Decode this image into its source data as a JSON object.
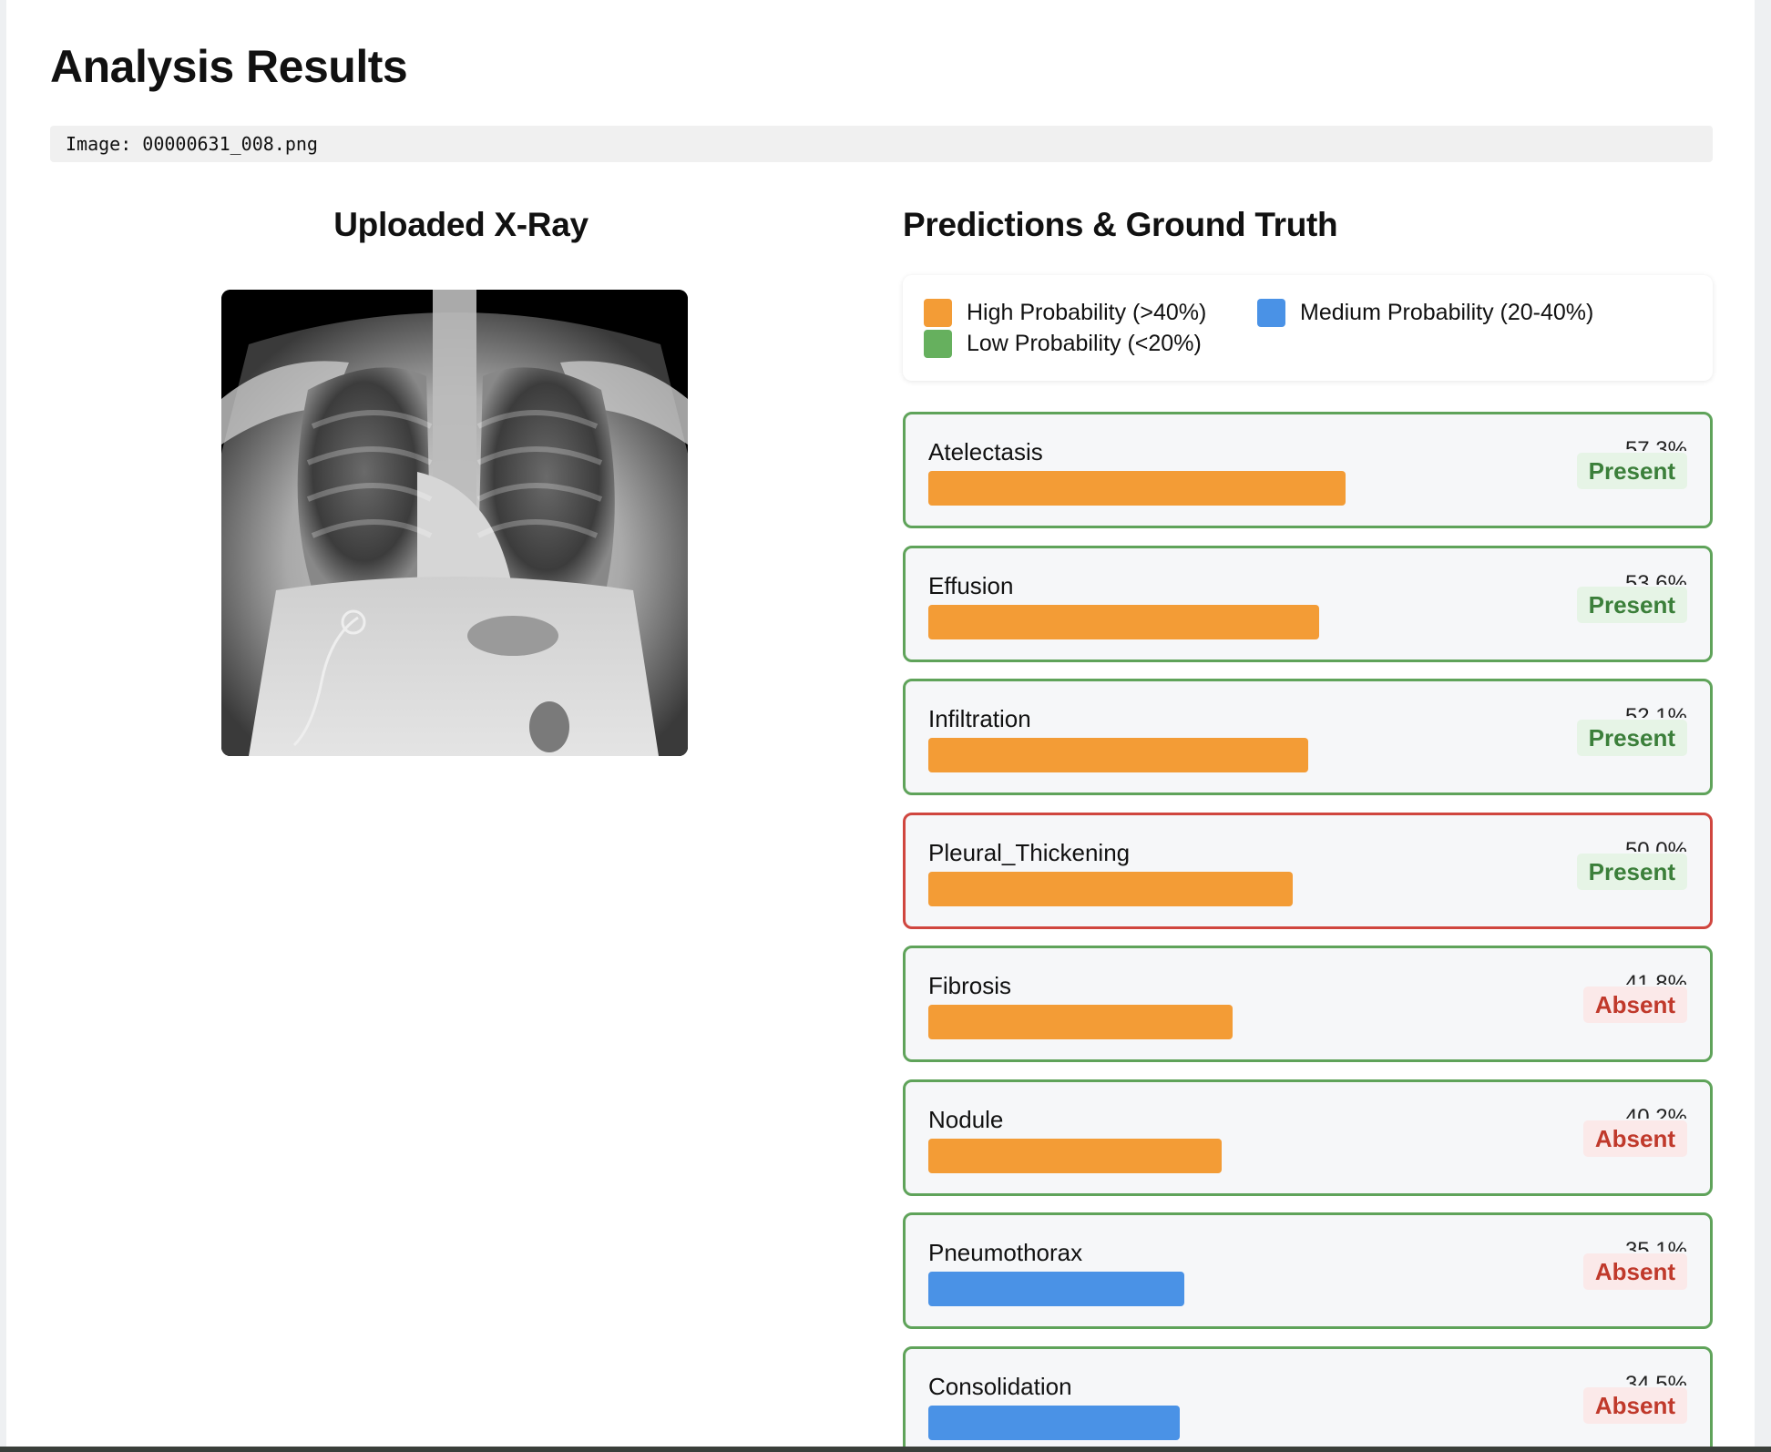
{
  "page": {
    "title": "Analysis Results",
    "image_line": "Image: 00000631_008.png",
    "left_title": "Uploaded X-Ray",
    "right_title": "Predictions & Ground Truth"
  },
  "legend": [
    {
      "label": "High Probability (>40%)",
      "color": "#f39c36"
    },
    {
      "label": "Medium Probability (20-40%)",
      "color": "#4a92e6"
    },
    {
      "label": "Low Probability (<20%)",
      "color": "#66b05e"
    }
  ],
  "predictions": [
    {
      "label": "Atelectasis",
      "pct": "57.3%",
      "value": 57.3,
      "level": "high",
      "truth": "Present",
      "match": true
    },
    {
      "label": "Effusion",
      "pct": "53.6%",
      "value": 53.6,
      "level": "high",
      "truth": "Present",
      "match": true
    },
    {
      "label": "Infiltration",
      "pct": "52.1%",
      "value": 52.1,
      "level": "high",
      "truth": "Present",
      "match": true
    },
    {
      "label": "Pleural_Thickening",
      "pct": "50.0%",
      "value": 50.0,
      "level": "high",
      "truth": "Present",
      "match": false
    },
    {
      "label": "Fibrosis",
      "pct": "41.8%",
      "value": 41.8,
      "level": "high",
      "truth": "Absent",
      "match": true
    },
    {
      "label": "Nodule",
      "pct": "40.2%",
      "value": 40.2,
      "level": "high",
      "truth": "Absent",
      "match": true
    },
    {
      "label": "Pneumothorax",
      "pct": "35.1%",
      "value": 35.1,
      "level": "medium",
      "truth": "Absent",
      "match": true
    },
    {
      "label": "Consolidation",
      "pct": "34.5%",
      "value": 34.5,
      "level": "medium",
      "truth": "Absent",
      "match": true
    }
  ],
  "colors": {
    "high": "#f39c36",
    "medium": "#4a92e6",
    "low": "#66b05e",
    "match_border": "#5fa35a",
    "mismatch_border": "#d0463f"
  }
}
